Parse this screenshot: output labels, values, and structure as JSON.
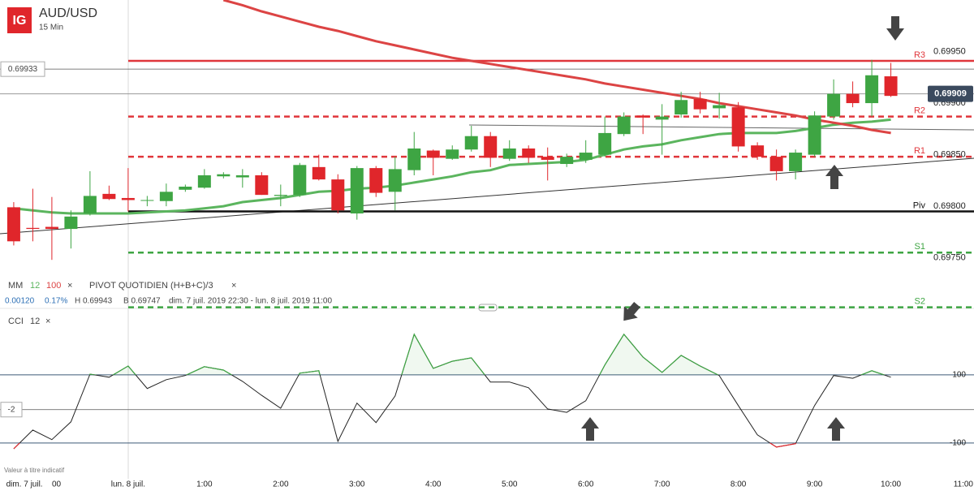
{
  "header": {
    "logo": "IG",
    "symbol": "AUD/USD",
    "interval": "15 Min",
    "close_icon": "×",
    "footer_note": "Valeur à titre indicatif"
  },
  "info": {
    "change": "0.00120",
    "change_pct": "0.17%",
    "high": "H 0.69943",
    "low": "B 0.69747",
    "range": "dim. 7 juil. 2019 22:30 - lun. 8 juil. 2019 11:00"
  },
  "chart_data": [
    {
      "type": "candlestick",
      "legend_label": "MM",
      "up_color": "#3ea543",
      "down_color": "#e0262b",
      "x": [
        -1.5,
        -1.25,
        -1,
        -0.75,
        -0.5,
        -0.25,
        0,
        0.25,
        0.5,
        0.75,
        1,
        1.25,
        1.5,
        1.75,
        2,
        2.25,
        2.5,
        2.75,
        3,
        3.25,
        3.5,
        3.75,
        4,
        4.25,
        4.5,
        4.75,
        5,
        5.25,
        5.5,
        5.75,
        6,
        6.25,
        6.5,
        6.75,
        7,
        7.25,
        7.5,
        7.75,
        8,
        8.25,
        8.5,
        8.75,
        9,
        9.25,
        9.5,
        9.75,
        10
      ],
      "open": [
        0.69799,
        0.69779,
        0.6978,
        0.69778,
        0.69793,
        0.69812,
        0.69808,
        0.69806,
        0.69805,
        0.69816,
        0.69818,
        0.69829,
        0.69828,
        0.6983,
        0.6981,
        0.69811,
        0.69838,
        0.69826,
        0.69793,
        0.69837,
        0.69814,
        0.69835,
        0.69854,
        0.69846,
        0.69855,
        0.69868,
        0.69846,
        0.69856,
        0.69848,
        0.69841,
        0.69845,
        0.6985,
        0.6987,
        0.69888,
        0.69884,
        0.69889,
        0.69904,
        0.69895,
        0.69896,
        0.69859,
        0.69848,
        0.69834,
        0.6985,
        0.69887,
        0.69909,
        0.699,
        0.69926
      ],
      "high": [
        0.69804,
        0.69817,
        0.69809,
        0.69796,
        0.69834,
        0.6982,
        0.69837,
        0.6981,
        0.69822,
        0.69821,
        0.69836,
        0.69833,
        0.69836,
        0.69833,
        0.69821,
        0.69842,
        0.6985,
        0.69831,
        0.69839,
        0.69839,
        0.69848,
        0.69872,
        0.69855,
        0.69859,
        0.69878,
        0.69872,
        0.69864,
        0.69859,
        0.69857,
        0.69851,
        0.69864,
        0.69887,
        0.69891,
        0.69889,
        0.69899,
        0.69911,
        0.69911,
        0.6991,
        0.69901,
        0.69862,
        0.69855,
        0.69855,
        0.69892,
        0.69923,
        0.69921,
        0.69942,
        0.69939
      ],
      "low": [
        0.69762,
        0.69766,
        0.69748,
        0.69759,
        0.69791,
        0.69806,
        0.69795,
        0.698,
        0.698,
        0.69814,
        0.69817,
        0.69827,
        0.69818,
        0.69811,
        0.698,
        0.69809,
        0.69825,
        0.69793,
        0.69787,
        0.69809,
        0.69796,
        0.6983,
        0.6983,
        0.69845,
        0.69853,
        0.69838,
        0.69844,
        0.69842,
        0.69825,
        0.69838,
        0.69842,
        0.69848,
        0.69868,
        0.6987,
        0.6985,
        0.69886,
        0.6989,
        0.69885,
        0.69853,
        0.69845,
        0.69825,
        0.69826,
        0.69848,
        0.69884,
        0.69896,
        0.69887,
        0.69906
      ],
      "close": [
        0.69766,
        0.69778,
        0.69778,
        0.6979,
        0.6981,
        0.69807,
        0.69806,
        0.69806,
        0.69814,
        0.69819,
        0.6983,
        0.69831,
        0.6983,
        0.69811,
        0.69811,
        0.6984,
        0.69826,
        0.69796,
        0.69837,
        0.69813,
        0.69836,
        0.69856,
        0.69847,
        0.69855,
        0.69868,
        0.69847,
        0.69856,
        0.69847,
        0.69845,
        0.69848,
        0.69852,
        0.69871,
        0.69887,
        0.69886,
        0.69887,
        0.69903,
        0.69894,
        0.69898,
        0.69858,
        0.69848,
        0.69834,
        0.69852,
        0.69888,
        0.69909,
        0.699,
        0.69927,
        0.69907
      ],
      "series": [
        {
          "name": "12",
          "color": "#5bb55e",
          "values": [
            0.69798,
            0.69796,
            0.69794,
            0.69793,
            0.69793,
            0.69793,
            0.69793,
            0.69794,
            0.69795,
            0.69796,
            0.69798,
            0.698,
            0.69804,
            0.69806,
            0.69808,
            0.69811,
            0.69814,
            0.69815,
            0.69817,
            0.69818,
            0.6982,
            0.69823,
            0.69826,
            0.69829,
            0.69833,
            0.69835,
            0.6984,
            0.69841,
            0.69842,
            0.69843,
            0.69845,
            0.6985,
            0.69855,
            0.69858,
            0.6986,
            0.69864,
            0.69867,
            0.6987,
            0.69871,
            0.69871,
            0.69871,
            0.69873,
            0.69876,
            0.69879,
            0.69881,
            0.69882,
            0.69884
          ]
        },
        {
          "name": "100",
          "color": "#dc4444",
          "values": [
            null,
            null,
            null,
            null,
            null,
            null,
            null,
            null,
            null,
            null,
            null,
            0.7,
            0.69995,
            0.69989,
            0.69984,
            0.69979,
            0.69974,
            0.6997,
            0.69965,
            0.6996,
            0.69956,
            0.69952,
            0.69948,
            0.69944,
            0.69941,
            0.69938,
            0.69935,
            0.69932,
            0.69929,
            0.69926,
            0.69923,
            0.69919,
            0.69916,
            0.69913,
            0.6991,
            0.69907,
            0.69904,
            0.699,
            0.69897,
            0.69894,
            0.69891,
            0.69888,
            0.69884,
            0.69881,
            0.69878,
            0.69874,
            0.69871
          ]
        }
      ],
      "pivot_title": "PIVOT QUOTIDIEN (H+B+C)/3",
      "pivots": [
        {
          "name": "R3",
          "value": 0.69941,
          "color": "#e0363b",
          "dashed": false
        },
        {
          "name": "R2",
          "value": 0.69887,
          "color": "#e0363b",
          "dashed": true
        },
        {
          "name": "R1",
          "value": 0.69848,
          "color": "#e0363b",
          "dashed": true
        },
        {
          "name": "Piv",
          "value": 0.69795,
          "color": "#111111",
          "dashed": false
        },
        {
          "name": "S1",
          "value": 0.69755,
          "color": "#3ea543",
          "dashed": true
        },
        {
          "name": "S2",
          "value": 0.69702,
          "color": "#3ea543",
          "dashed": true
        }
      ],
      "last_price": {
        "value": 0.69909,
        "label": "0.69909"
      },
      "cursor_price": {
        "value": 0.69933,
        "label": "0.69933"
      },
      "xlim": [
        -1.68,
        11.09
      ],
      "ylim": [
        0.69697,
        0.7
      ],
      "yticks": [
        {
          "value": 0.6995,
          "label": "0.69950"
        },
        {
          "value": 0.699,
          "label": "0.69900"
        },
        {
          "value": 0.6985,
          "label": "0.69850"
        },
        {
          "value": 0.698,
          "label": "0.69800"
        },
        {
          "value": 0.6975,
          "label": "0.69750"
        }
      ],
      "grid": false
    },
    {
      "type": "line",
      "title": "CCI",
      "series": [
        {
          "name": "12",
          "color": "#222222",
          "values": [
            -117,
            -62,
            -90,
            -38,
            102,
            93,
            126,
            60,
            86,
            98,
            124,
            114,
            81,
            40,
            2,
            105,
            112,
            -95,
            17,
            -40,
            38,
            219,
            119,
            140,
            150,
            79,
            79,
            62,
            0,
            -10,
            24,
            129,
            219,
            152,
            107,
            157,
            126,
            98,
            10,
            -76,
            -112,
            -102,
            10,
            98,
            90,
            112,
            93
          ]
        }
      ],
      "above_color": "#3ea543",
      "below_color": "#e0262b",
      "level_color": "#3d5a78",
      "cursor_value": -2,
      "xlim": [
        -1.68,
        11.09
      ],
      "ylim": [
        -205,
        283
      ],
      "yticks": [
        100,
        -100
      ],
      "xticks": [
        {
          "value": -1.36,
          "label": "dim. 7 juil."
        },
        {
          "value": -0.94,
          "label": "00"
        },
        {
          "value": 0,
          "label": "lun. 8 juil."
        },
        {
          "value": 1,
          "label": "1:00"
        },
        {
          "value": 2,
          "label": "2:00"
        },
        {
          "value": 3,
          "label": "3:00"
        },
        {
          "value": 4,
          "label": "4:00"
        },
        {
          "value": 5,
          "label": "5:00"
        },
        {
          "value": 6,
          "label": "6:00"
        },
        {
          "value": 7,
          "label": "7:00"
        },
        {
          "value": 8,
          "label": "8:00"
        },
        {
          "value": 9,
          "label": "9:00"
        },
        {
          "value": 10,
          "label": "10:00"
        },
        {
          "value": 11,
          "label": "11:00"
        }
      ]
    }
  ]
}
